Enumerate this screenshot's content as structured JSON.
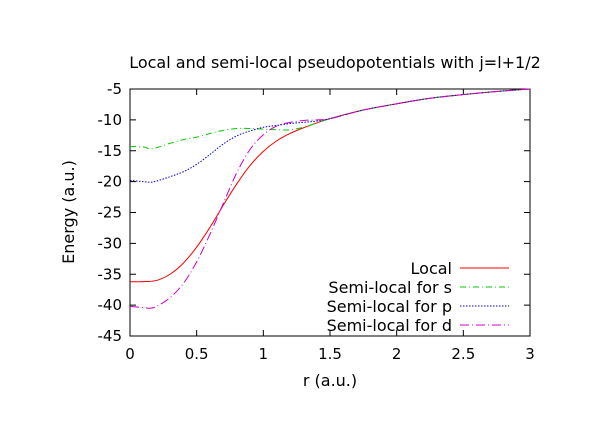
{
  "chart_data": {
    "type": "line",
    "title": "Local and semi-local pseudopotentials with j=l+1/2",
    "xlabel": "r (a.u.)",
    "ylabel": "Energy (a.u.)",
    "xlim": [
      0,
      3
    ],
    "ylim": [
      -45,
      -5
    ],
    "xticks": [
      "0",
      "0.5",
      "1",
      "1.5",
      "2",
      "2.5",
      "3"
    ],
    "yticks": [
      "-5",
      "-10",
      "-15",
      "-20",
      "-25",
      "-30",
      "-35",
      "-40",
      "-45"
    ],
    "grid": false,
    "legend_position": "bottom-right",
    "series": [
      {
        "name": "Local",
        "color": "#ff0000",
        "dash": "solid",
        "x": [
          0,
          0.1,
          0.2,
          0.3,
          0.4,
          0.5,
          0.6,
          0.7,
          0.8,
          0.9,
          1.0,
          1.1,
          1.2,
          1.3,
          1.4,
          1.5,
          1.75,
          2.0,
          2.25,
          2.5,
          2.75,
          3.0
        ],
        "y": [
          -36.2,
          -36.2,
          -36.0,
          -35.0,
          -33.2,
          -30.6,
          -27.4,
          -23.8,
          -20.4,
          -17.4,
          -15.1,
          -13.4,
          -12.2,
          -11.3,
          -10.5,
          -9.8,
          -8.4,
          -7.4,
          -6.5,
          -5.9,
          -5.4,
          -5.0
        ]
      },
      {
        "name": "Semi-local for s",
        "color": "#00cc00",
        "dash": "dashdot",
        "x": [
          0,
          0.1,
          0.15,
          0.2,
          0.3,
          0.4,
          0.5,
          0.6,
          0.7,
          0.8,
          0.9,
          1.0,
          1.1,
          1.2,
          1.3,
          1.4,
          1.5,
          1.75,
          2.0,
          2.25,
          2.5,
          2.75,
          3.0
        ],
        "y": [
          -14.3,
          -14.4,
          -14.7,
          -14.5,
          -13.8,
          -13.2,
          -12.8,
          -12.2,
          -11.7,
          -11.4,
          -11.4,
          -11.5,
          -11.6,
          -11.6,
          -11.2,
          -10.5,
          -9.8,
          -8.4,
          -7.4,
          -6.5,
          -5.9,
          -5.4,
          -5.0
        ]
      },
      {
        "name": "Semi-local for p",
        "color": "#0000cc",
        "dash": "dotted",
        "x": [
          0,
          0.1,
          0.15,
          0.2,
          0.3,
          0.4,
          0.5,
          0.6,
          0.7,
          0.8,
          0.9,
          1.0,
          1.1,
          1.2,
          1.3,
          1.4,
          1.5,
          1.75,
          2.0,
          2.25,
          2.5,
          2.75,
          3.0
        ],
        "y": [
          -19.8,
          -20.0,
          -20.1,
          -19.9,
          -19.2,
          -18.4,
          -17.2,
          -15.6,
          -13.9,
          -12.6,
          -11.8,
          -11.2,
          -10.9,
          -10.6,
          -10.4,
          -10.2,
          -9.8,
          -8.4,
          -7.4,
          -6.5,
          -5.9,
          -5.4,
          -5.0
        ]
      },
      {
        "name": "Semi-local for d",
        "color": "#cc00cc",
        "dash": "dashdotlong",
        "x": [
          0,
          0.1,
          0.15,
          0.2,
          0.3,
          0.4,
          0.5,
          0.6,
          0.7,
          0.8,
          0.9,
          1.0,
          1.1,
          1.2,
          1.3,
          1.4,
          1.5,
          1.75,
          2.0,
          2.25,
          2.5,
          2.75,
          3.0
        ],
        "y": [
          -40.2,
          -40.4,
          -40.5,
          -40.2,
          -38.8,
          -36.5,
          -33.0,
          -28.5,
          -23.5,
          -18.6,
          -14.8,
          -12.4,
          -11.0,
          -10.4,
          -10.1,
          -10.0,
          -9.8,
          -8.4,
          -7.4,
          -6.5,
          -5.9,
          -5.4,
          -5.0
        ]
      }
    ]
  }
}
